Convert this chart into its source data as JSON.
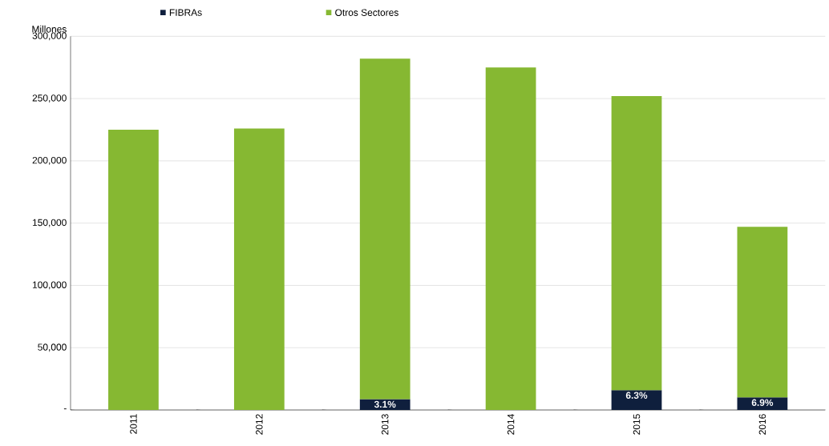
{
  "chart_data": {
    "type": "bar",
    "stacked": true,
    "ylabel": "Millones",
    "categories": [
      "2011",
      "2012",
      "2013",
      "2014",
      "2015",
      "2016"
    ],
    "series": [
      {
        "name": "FIBRAs",
        "color": "#0f1f3d",
        "values": [
          null,
          null,
          8700,
          null,
          15900,
          10100
        ]
      },
      {
        "name": "Otros Sectores",
        "color": "#86b832",
        "values": [
          225000,
          226000,
          273300,
          275000,
          236100,
          136900
        ]
      }
    ],
    "ylim": [
      0,
      300000
    ],
    "yticks": [
      {
        "value": 0,
        "label": "-"
      },
      {
        "value": 50000,
        "label": "50,000"
      },
      {
        "value": 100000,
        "label": "100,000"
      },
      {
        "value": 150000,
        "label": "150,000"
      },
      {
        "value": 200000,
        "label": "200,000"
      },
      {
        "value": 250000,
        "label": "250,000"
      },
      {
        "value": 300000,
        "label": "300,000"
      }
    ],
    "grid": "y",
    "legend": "top",
    "annotations": [
      {
        "text": "3.1%",
        "x": "2013",
        "y": 8700
      },
      {
        "text": "6.3%",
        "x": "2015",
        "y": 15900
      },
      {
        "text": "6.9%",
        "x": "2016",
        "y": 10100
      }
    ]
  }
}
